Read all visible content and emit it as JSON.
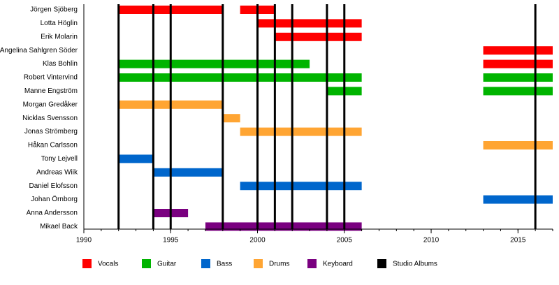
{
  "chart_data": {
    "type": "timeline",
    "categories": [
      "Jörgen Sjöberg",
      "Lotta Höglin",
      "Erik Molarin",
      "Angelina Sahlgren Söder",
      "Klas Bohlin",
      "Robert Vintervind",
      "Manne Engström",
      "Morgan Gredåker",
      "Nicklas Svensson",
      "Jonas Strömberg",
      "Håkan Carlsson",
      "Tony Lejvell",
      "Andreas Wiik",
      "Daniel Elofsson",
      "Johan Örnborg",
      "Anna Andersson",
      "Mikael Back"
    ],
    "xlim": [
      1990,
      2017
    ],
    "xticks": [
      1990,
      1995,
      2000,
      2005,
      2010,
      2015
    ],
    "minor_tick_step": 1,
    "series": [
      {
        "name": "Vocals",
        "color": "#ff0000",
        "bars": [
          {
            "member": "Jörgen Sjöberg",
            "start": 1992,
            "end": 1998
          },
          {
            "member": "Jörgen Sjöberg",
            "start": 1999,
            "end": 2001
          },
          {
            "member": "Lotta Höglin",
            "start": 2000,
            "end": 2006
          },
          {
            "member": "Erik Molarin",
            "start": 2001,
            "end": 2006
          },
          {
            "member": "Angelina Sahlgren Söder",
            "start": 2013,
            "end": 2017
          },
          {
            "member": "Klas Bohlin",
            "start": 2013,
            "end": 2017
          }
        ]
      },
      {
        "name": "Guitar",
        "color": "#00b400",
        "bars": [
          {
            "member": "Klas Bohlin",
            "start": 1992,
            "end": 2003
          },
          {
            "member": "Robert Vintervind",
            "start": 1992,
            "end": 2006
          },
          {
            "member": "Robert Vintervind",
            "start": 2013,
            "end": 2017
          },
          {
            "member": "Manne Engström",
            "start": 2004,
            "end": 2006
          },
          {
            "member": "Manne Engström",
            "start": 2013,
            "end": 2017
          }
        ]
      },
      {
        "name": "Bass",
        "color": "#0066cc",
        "bars": [
          {
            "member": "Tony Lejvell",
            "start": 1992,
            "end": 1994
          },
          {
            "member": "Andreas Wiik",
            "start": 1994,
            "end": 1998
          },
          {
            "member": "Daniel Elofsson",
            "start": 1999,
            "end": 2006
          },
          {
            "member": "Johan Örnborg",
            "start": 2013,
            "end": 2017
          }
        ]
      },
      {
        "name": "Drums",
        "color": "#ffa533",
        "bars": [
          {
            "member": "Morgan Gredåker",
            "start": 1992,
            "end": 1998
          },
          {
            "member": "Nicklas Svensson",
            "start": 1998,
            "end": 1999
          },
          {
            "member": "Jonas Strömberg",
            "start": 1999,
            "end": 2006
          },
          {
            "member": "Håkan Carlsson",
            "start": 2013,
            "end": 2017
          }
        ]
      },
      {
        "name": "Keyboard",
        "color": "#7a0080",
        "bars": [
          {
            "member": "Anna Andersson",
            "start": 1994,
            "end": 1996
          },
          {
            "member": "Mikael Back",
            "start": 1997,
            "end": 2006
          }
        ]
      }
    ],
    "albums": {
      "name": "Studio Albums",
      "color": "#000000",
      "x": [
        1992,
        1994,
        1995,
        1998,
        2000,
        2001,
        2002,
        2004,
        2005,
        2016
      ]
    }
  }
}
